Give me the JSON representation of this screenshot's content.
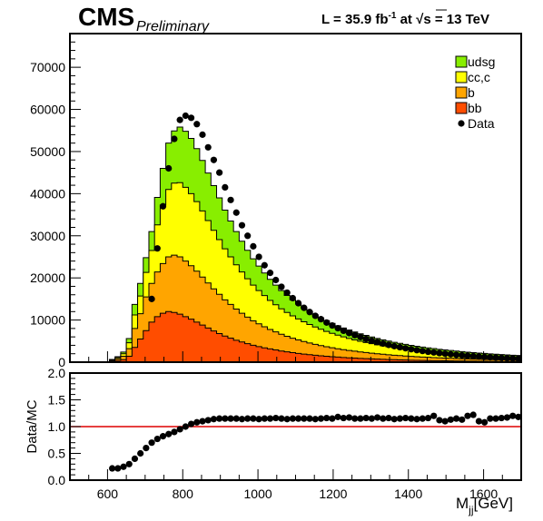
{
  "header": {
    "experiment": "CMS",
    "status": "Preliminary",
    "lumi_prefix": "L = 35.9 fb",
    "lumi_exp": "-1",
    "lumi_mid": " at ",
    "sqrt_symbol": "√",
    "energy": "s = 13 TeV"
  },
  "chart_data": [
    {
      "type": "area",
      "stacked": true,
      "x": [
        530,
        545,
        560,
        575,
        590,
        605,
        620,
        635,
        650,
        665,
        680,
        695,
        710,
        725,
        740,
        755,
        770,
        785,
        800,
        815,
        830,
        845,
        860,
        875,
        890,
        905,
        920,
        935,
        950,
        965,
        980,
        995,
        1010,
        1025,
        1040,
        1055,
        1070,
        1085,
        1100,
        1115,
        1130,
        1145,
        1160,
        1175,
        1190,
        1205,
        1220,
        1235,
        1250,
        1265,
        1280,
        1295,
        1310,
        1325,
        1340,
        1355,
        1370,
        1385,
        1400,
        1415,
        1430,
        1445,
        1460,
        1475,
        1490,
        1505,
        1520,
        1535,
        1550,
        1565,
        1580,
        1595,
        1610,
        1625,
        1640,
        1655,
        1670,
        1685
      ],
      "xlim": [
        500,
        1700
      ],
      "ylim": [
        0,
        78000
      ],
      "yticks": [
        0,
        10000,
        20000,
        30000,
        40000,
        50000,
        60000,
        70000
      ],
      "series": [
        {
          "name": "bb",
          "color": "#ff4d00",
          "values": [
            0,
            0,
            0,
            0,
            0,
            200,
            400,
            600,
            1400,
            3500,
            5500,
            7500,
            9500,
            10800,
            11600,
            12000,
            11800,
            11400,
            10800,
            10200,
            9500,
            8800,
            8100,
            7400,
            6800,
            6200,
            5700,
            5200,
            4800,
            4400,
            4000,
            3700,
            3400,
            3150,
            2900,
            2650,
            2450,
            2250,
            2080,
            1920,
            1770,
            1640,
            1510,
            1400,
            1300,
            1200,
            1110,
            1030,
            960,
            890,
            830,
            770,
            720,
            670,
            620,
            580,
            540,
            500,
            470,
            440,
            410,
            390,
            360,
            340,
            320,
            300,
            280,
            265,
            250,
            235,
            220,
            210,
            195,
            185,
            175,
            165,
            155,
            150
          ]
        },
        {
          "name": "b",
          "color": "#ffa500",
          "values": [
            0,
            0,
            0,
            0,
            0,
            200,
            400,
            800,
            1800,
            4500,
            6000,
            8000,
            9200,
            10600,
            11800,
            13000,
            13600,
            13600,
            13200,
            12700,
            12100,
            11400,
            10700,
            10000,
            9300,
            8600,
            8000,
            7400,
            6800,
            6300,
            5800,
            5400,
            5000,
            4600,
            4280,
            3970,
            3690,
            3440,
            3200,
            2980,
            2780,
            2600,
            2430,
            2270,
            2120,
            1990,
            1860,
            1750,
            1640,
            1540,
            1450,
            1360,
            1280,
            1210,
            1140,
            1070,
            1010,
            950,
            900,
            850,
            800,
            760,
            720,
            680,
            645,
            610,
            580,
            550,
            520,
            495,
            470,
            445,
            425,
            405,
            385,
            365,
            350,
            335
          ]
        },
        {
          "name": "cc,c",
          "color": "#ffff00",
          "values": [
            0,
            0,
            0,
            0,
            0,
            150,
            300,
            600,
            1400,
            3200,
            4200,
            5800,
            7800,
            11200,
            13900,
            16000,
            17100,
            17600,
            17500,
            17100,
            16500,
            15700,
            14800,
            13900,
            13000,
            12100,
            11300,
            10500,
            9800,
            9100,
            8500,
            7900,
            7400,
            6900,
            6460,
            6050,
            5670,
            5310,
            4980,
            4680,
            4390,
            4120,
            3870,
            3640,
            3420,
            3220,
            3030,
            2850,
            2690,
            2530,
            2390,
            2250,
            2130,
            2010,
            1900,
            1790,
            1700,
            1610,
            1520,
            1440,
            1360,
            1290,
            1230,
            1160,
            1100,
            1050,
            1000,
            950,
            900,
            860,
            820,
            780,
            745,
            710,
            680,
            650,
            620,
            595
          ]
        },
        {
          "name": "udsg",
          "color": "#88ee00",
          "values": [
            0,
            0,
            0,
            0,
            0,
            100,
            200,
            400,
            1000,
            2500,
            3000,
            3500,
            4500,
            6500,
            8700,
            11000,
            12400,
            13200,
            13300,
            13100,
            12600,
            12000,
            11300,
            10600,
            9900,
            9200,
            8500,
            7900,
            7300,
            6750,
            6250,
            5800,
            5380,
            5000,
            4650,
            4330,
            4040,
            3770,
            3520,
            3290,
            3080,
            2880,
            2700,
            2540,
            2380,
            2240,
            2110,
            1990,
            1880,
            1770,
            1680,
            1590,
            1500,
            1420,
            1350,
            1280,
            1220,
            1160,
            1100,
            1050,
            1000,
            960,
            915,
            875,
            840,
            805,
            770,
            740,
            710,
            680,
            655,
            630,
            605,
            580,
            560,
            540,
            520,
            500
          ]
        }
      ]
    },
    {
      "type": "scatter",
      "name": "Data",
      "x": [
        620,
        635,
        650,
        665,
        680,
        695,
        710,
        725,
        740,
        755,
        770,
        785,
        800,
        815,
        830,
        845,
        860,
        875,
        890,
        905,
        920,
        935,
        950,
        965,
        980,
        995,
        1010,
        1025,
        1040,
        1055,
        1070,
        1085,
        1100,
        1115,
        1130,
        1145,
        1160,
        1175,
        1190,
        1205,
        1220,
        1235,
        1250,
        1265,
        1280,
        1295,
        1310,
        1325,
        1340,
        1355,
        1370,
        1385,
        1400,
        1415,
        1430,
        1445,
        1460,
        1475,
        1490,
        1505,
        1520,
        1535,
        1550,
        1565,
        1580,
        1595,
        1610,
        1625,
        1640,
        1655,
        1670,
        1685
      ],
      "y": [
        0,
        0,
        0,
        0,
        0,
        0,
        15000,
        27000,
        37000,
        46000,
        53000,
        57500,
        58500,
        58000,
        56500,
        54000,
        51000,
        48000,
        45000,
        41500,
        38500,
        35500,
        32500,
        30000,
        27500,
        25000,
        23000,
        21200,
        19500,
        17900,
        16500,
        15200,
        14000,
        12900,
        11900,
        11000,
        10200,
        9400,
        8700,
        8050,
        7450,
        6900,
        6400,
        5950,
        5500,
        5100,
        4750,
        4400,
        4100,
        3800,
        3550,
        3300,
        3070,
        2850,
        2650,
        2470,
        2300,
        2150,
        2000,
        1870,
        1740,
        1620,
        1520,
        1420,
        1330,
        1240,
        1160,
        1090,
        1020,
        960,
        900,
        850
      ],
      "ylabel": "",
      "legend": [
        "udsg",
        "cc,c",
        "b",
        "bb",
        "Data"
      ],
      "legend_position": "top-right"
    },
    {
      "type": "scatter",
      "name": "Data/MC ratio",
      "x": [
        605,
        620,
        635,
        650,
        665,
        680,
        695,
        710,
        725,
        740,
        755,
        770,
        785,
        800,
        815,
        830,
        845,
        860,
        875,
        890,
        905,
        920,
        935,
        950,
        965,
        980,
        995,
        1010,
        1025,
        1040,
        1055,
        1070,
        1085,
        1100,
        1115,
        1130,
        1145,
        1160,
        1175,
        1190,
        1205,
        1220,
        1235,
        1250,
        1265,
        1280,
        1295,
        1310,
        1325,
        1340,
        1355,
        1370,
        1385,
        1400,
        1415,
        1430,
        1445,
        1460,
        1475,
        1490,
        1505,
        1520,
        1535,
        1550,
        1565,
        1580,
        1595,
        1610,
        1625,
        1640,
        1655,
        1670,
        1685
      ],
      "y": [
        0.22,
        0.22,
        0.25,
        0.3,
        0.4,
        0.5,
        0.6,
        0.7,
        0.77,
        0.82,
        0.86,
        0.9,
        0.95,
        1.0,
        1.05,
        1.08,
        1.1,
        1.12,
        1.14,
        1.15,
        1.15,
        1.15,
        1.15,
        1.14,
        1.15,
        1.15,
        1.14,
        1.15,
        1.15,
        1.16,
        1.15,
        1.14,
        1.15,
        1.15,
        1.15,
        1.15,
        1.14,
        1.15,
        1.16,
        1.15,
        1.18,
        1.16,
        1.17,
        1.15,
        1.15,
        1.16,
        1.15,
        1.17,
        1.15,
        1.16,
        1.14,
        1.15,
        1.16,
        1.15,
        1.14,
        1.15,
        1.16,
        1.2,
        1.12,
        1.1,
        1.13,
        1.15,
        1.13,
        1.2,
        1.22,
        1.1,
        1.08,
        1.15,
        1.15,
        1.16,
        1.17,
        1.2,
        1.18
      ],
      "ylabel": "Data/MC",
      "xlabel_main": "M",
      "xlabel_sub": "jj",
      "xlabel_unit": "[GeV]",
      "xticks": [
        600,
        800,
        1000,
        1200,
        1400,
        1600
      ],
      "ylim": [
        0,
        2
      ],
      "yticks": [
        0.0,
        0.5,
        1.0,
        1.5,
        2.0
      ],
      "reference_line": 1.0,
      "reference_color": "#dd0000"
    }
  ]
}
